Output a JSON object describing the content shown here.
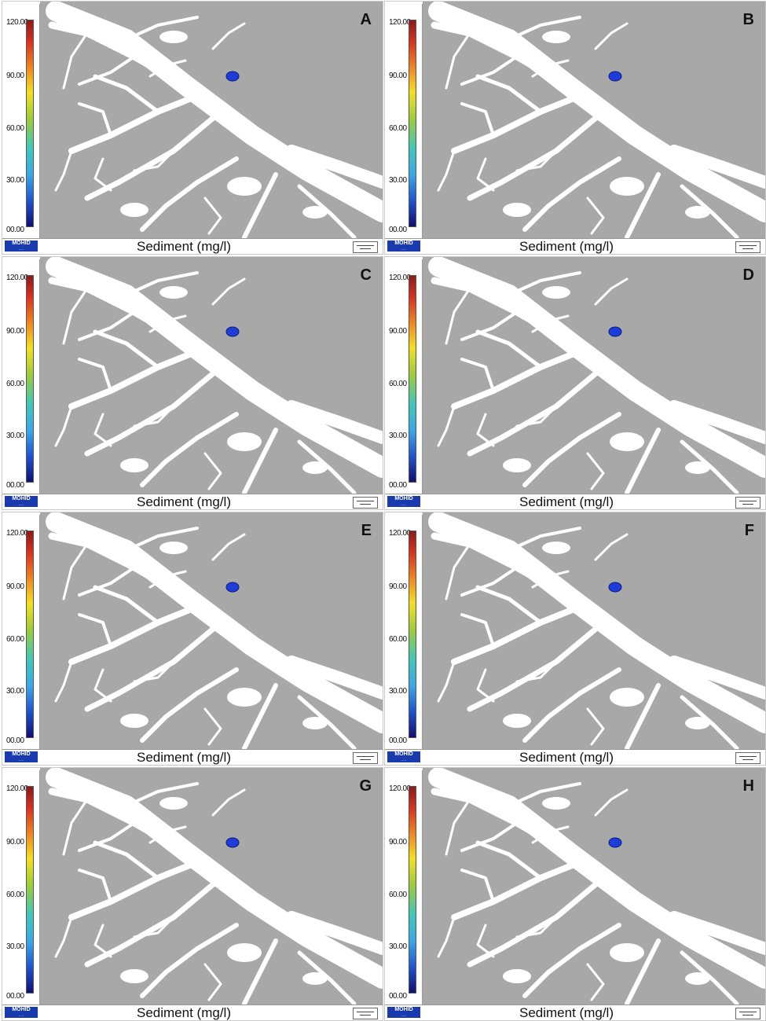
{
  "legend_ticks": [
    "120.00",
    "90.00",
    "60.00",
    "30.00",
    "00.00"
  ],
  "caption": "Sediment (mg/l)",
  "logo_text": "MOHID",
  "colors": {
    "land": "#a8a8a8",
    "water": "#ffffff",
    "plume": "#1e3cd8"
  },
  "colorbar_range": [
    0,
    120
  ],
  "panels": [
    {
      "label": "A",
      "plume_concentration": 30
    },
    {
      "label": "B",
      "plume_concentration": 30
    },
    {
      "label": "C",
      "plume_concentration": 25
    },
    {
      "label": "D",
      "plume_concentration": 20
    },
    {
      "label": "E",
      "plume_concentration": 15
    },
    {
      "label": "F",
      "plume_concentration": 15
    },
    {
      "label": "G",
      "plume_concentration": 15
    },
    {
      "label": "H",
      "plume_concentration": 20
    }
  ]
}
